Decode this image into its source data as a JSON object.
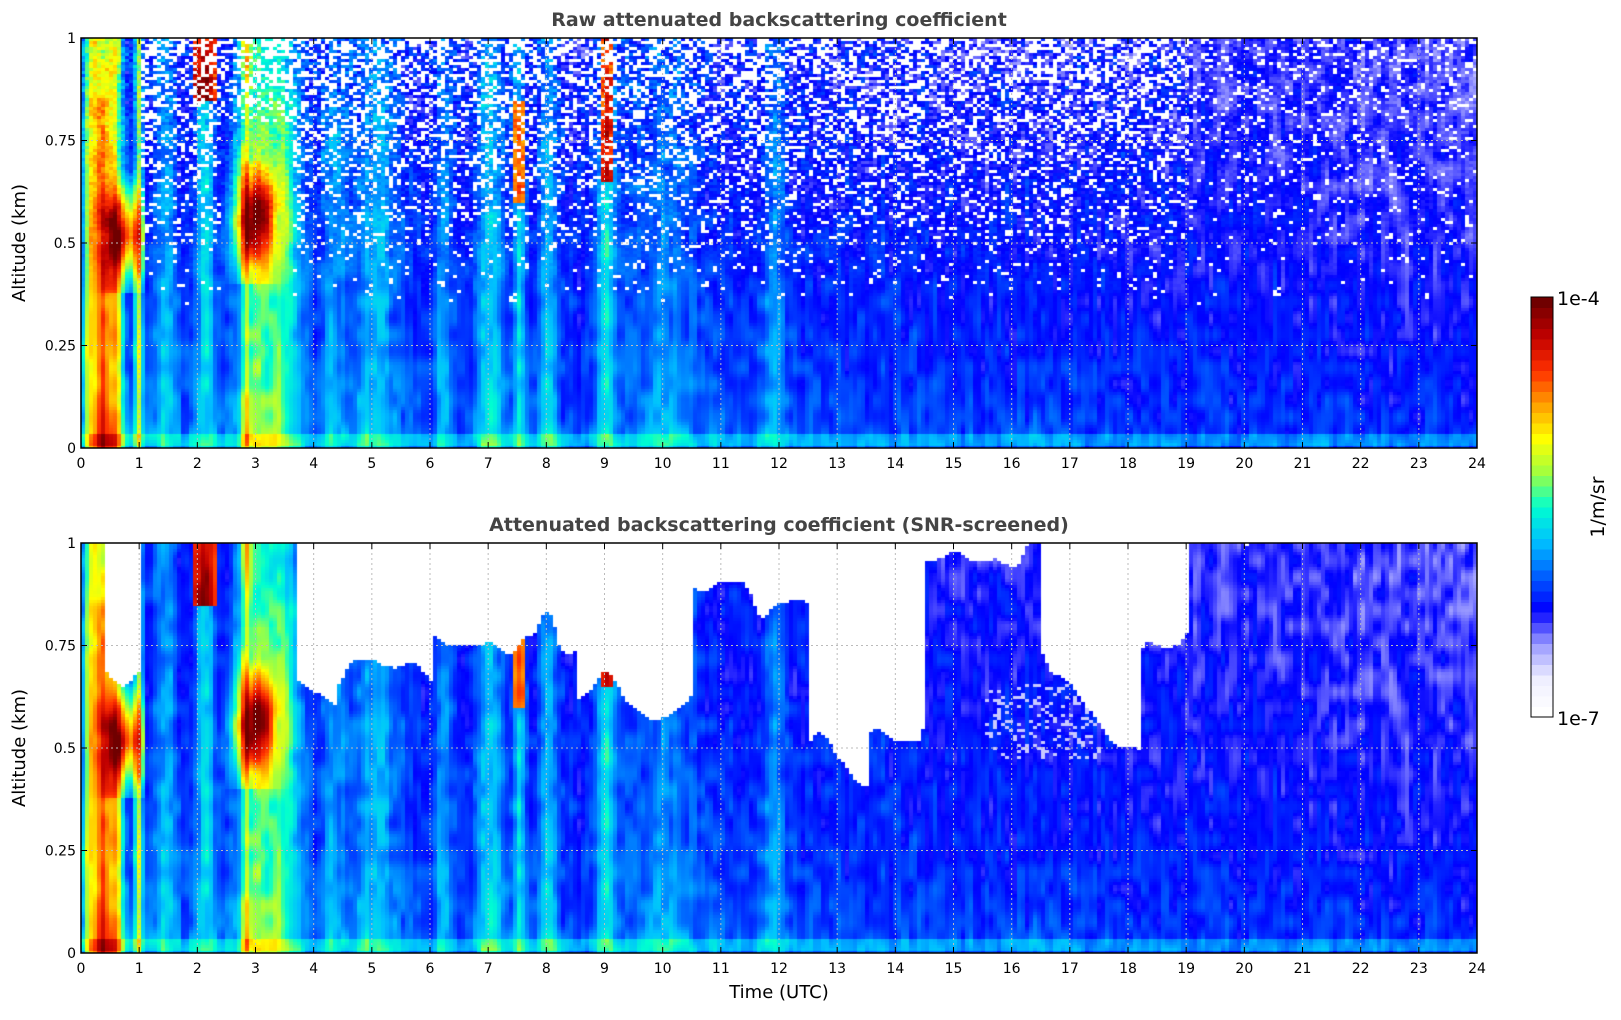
{
  "colors": {
    "colormap": [
      "#ffffff",
      "#eeeeff",
      "#9999ff",
      "#0000ff",
      "#0060ff",
      "#00c0ff",
      "#00ffd0",
      "#a0ff40",
      "#ffff00",
      "#ffa000",
      "#ff3000",
      "#c00000",
      "#700000"
    ],
    "text": "#000000",
    "title": "#444444",
    "grid": "#bbbbbb"
  },
  "chart_data": [
    {
      "type": "heatmap",
      "title": "Raw attenuated backscattering coefficient",
      "xlabel": "",
      "ylabel": "Altitude (km)",
      "xlim": [
        0,
        24
      ],
      "ylim": [
        0,
        1
      ],
      "xticks": [
        "0",
        "1",
        "2",
        "3",
        "4",
        "5",
        "6",
        "7",
        "8",
        "9",
        "10",
        "11",
        "12",
        "13",
        "14",
        "15",
        "16",
        "17",
        "18",
        "19",
        "20",
        "21",
        "22",
        "23",
        "24"
      ],
      "yticks": [
        "0",
        "0.25",
        "0.5",
        "0.75",
        "1"
      ],
      "grid": true,
      "screened": false
    },
    {
      "type": "heatmap",
      "title": "Attenuated backscattering coefficient (SNR-screened)",
      "xlabel": "Time (UTC)",
      "ylabel": "Altitude (km)",
      "xlim": [
        0,
        24
      ],
      "ylim": [
        0,
        1
      ],
      "xticks": [
        "0",
        "1",
        "2",
        "3",
        "4",
        "5",
        "6",
        "7",
        "8",
        "9",
        "10",
        "11",
        "12",
        "13",
        "14",
        "15",
        "16",
        "17",
        "18",
        "19",
        "20",
        "21",
        "22",
        "23",
        "24"
      ],
      "yticks": [
        "0",
        "0.25",
        "0.5",
        "0.75",
        "1"
      ],
      "grid": true,
      "screened": true
    }
  ],
  "colorbar": {
    "label": "1/m/sr",
    "max_label": "1e-4",
    "min_label": "1e-7",
    "scale": "log",
    "range": [
      1e-07,
      0.0001
    ]
  }
}
